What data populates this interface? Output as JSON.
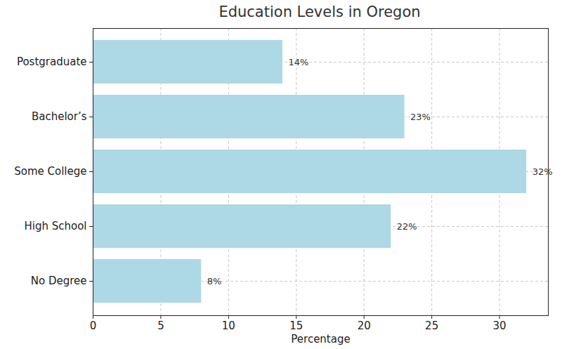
{
  "chart_data": {
    "type": "bar",
    "title": "Education Levels in Oregon",
    "orientation": "horizontal",
    "categories": [
      "Postgraduate",
      "Bachelor’s",
      "Some College",
      "High School",
      "No Degree"
    ],
    "values": [
      14,
      23,
      32,
      22,
      8
    ],
    "value_labels": [
      "14%",
      "23%",
      "32%",
      "22%",
      "8%"
    ],
    "data_labels": true,
    "color": "#add8e6",
    "xlabel": "Percentage",
    "xlim": [
      0,
      33.6
    ],
    "xticks": [
      0,
      5,
      10,
      15,
      20,
      25,
      30
    ],
    "grid": true
  }
}
